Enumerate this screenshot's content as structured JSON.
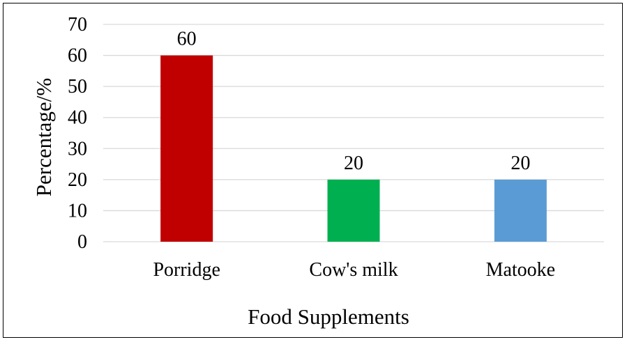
{
  "chart_data": {
    "type": "bar",
    "title": "",
    "xlabel": "Food Supplements",
    "ylabel": "Percentage/%",
    "categories": [
      "Porridge",
      "Cow's milk",
      "Matooke"
    ],
    "values": [
      60,
      20,
      20
    ],
    "data_labels": [
      "60",
      "20",
      "20"
    ],
    "bar_colors": [
      "#c00000",
      "#00b050",
      "#5b9bd5"
    ],
    "ylim": [
      0,
      70
    ],
    "yticks": [
      0,
      10,
      20,
      30,
      40,
      50,
      60,
      70
    ],
    "ytick_labels": [
      "0",
      "10",
      "20",
      "30",
      "40",
      "50",
      "60",
      "70"
    ],
    "grid": true,
    "grid_color": "#d9d9d9",
    "legend": "none"
  }
}
